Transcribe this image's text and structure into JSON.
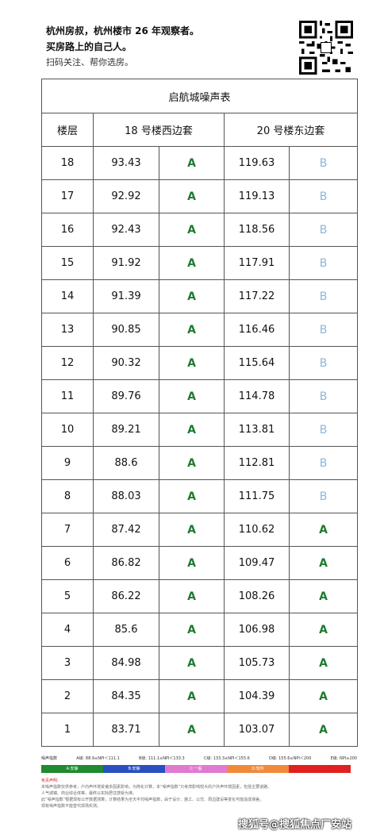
{
  "header": {
    "line1": "杭州房叔，杭州楼市 26 年观察者。",
    "line2": "买房路上的自己人。",
    "line3": "扫码关注、帮你选房。"
  },
  "table": {
    "title": "启航城噪声表",
    "col_floor": "楼层",
    "col_b18": "18 号楼西边套",
    "col_b20": "20 号楼东边套",
    "rows": [
      {
        "floor": "18",
        "v18": "93.43",
        "g18": "A",
        "v20": "119.63",
        "g20": "B"
      },
      {
        "floor": "17",
        "v18": "92.92",
        "g18": "A",
        "v20": "119.13",
        "g20": "B"
      },
      {
        "floor": "16",
        "v18": "92.43",
        "g18": "A",
        "v20": "118.56",
        "g20": "B"
      },
      {
        "floor": "15",
        "v18": "91.92",
        "g18": "A",
        "v20": "117.91",
        "g20": "B"
      },
      {
        "floor": "14",
        "v18": "91.39",
        "g18": "A",
        "v20": "117.22",
        "g20": "B"
      },
      {
        "floor": "13",
        "v18": "90.85",
        "g18": "A",
        "v20": "116.46",
        "g20": "B"
      },
      {
        "floor": "12",
        "v18": "90.32",
        "g18": "A",
        "v20": "115.64",
        "g20": "B"
      },
      {
        "floor": "11",
        "v18": "89.76",
        "g18": "A",
        "v20": "114.78",
        "g20": "B"
      },
      {
        "floor": "10",
        "v18": "89.21",
        "g18": "A",
        "v20": "113.81",
        "g20": "B"
      },
      {
        "floor": "9",
        "v18": "88.6",
        "g18": "A",
        "v20": "112.81",
        "g20": "B"
      },
      {
        "floor": "8",
        "v18": "88.03",
        "g18": "A",
        "v20": "111.75",
        "g20": "B"
      },
      {
        "floor": "7",
        "v18": "87.42",
        "g18": "A",
        "v20": "110.62",
        "g20": "A"
      },
      {
        "floor": "6",
        "v18": "86.82",
        "g18": "A",
        "v20": "109.47",
        "g20": "A"
      },
      {
        "floor": "5",
        "v18": "86.22",
        "g18": "A",
        "v20": "108.26",
        "g20": "A"
      },
      {
        "floor": "4",
        "v18": "85.6",
        "g18": "A",
        "v20": "106.98",
        "g20": "A"
      },
      {
        "floor": "3",
        "v18": "84.98",
        "g18": "A",
        "v20": "105.73",
        "g20": "A"
      },
      {
        "floor": "2",
        "v18": "84.35",
        "g18": "A",
        "v20": "104.39",
        "g20": "A"
      },
      {
        "floor": "1",
        "v18": "83.71",
        "g18": "A",
        "v20": "103.07",
        "g20": "A"
      }
    ]
  },
  "legend": {
    "label": "噪声指数",
    "items": [
      "A级: 88.9≤NPI＜111.1",
      "B级: 111.1≤NPI＜133.3",
      "C级: 133.3≤NPI＜155.6",
      "D级: 155.6≤NPI＜200",
      "E级: NPI≥200"
    ],
    "bar": [
      {
        "label": "A:安静",
        "color": "#1f8a2e"
      },
      {
        "label": "B:安静",
        "color": "#2a4fc0"
      },
      {
        "label": "C:一般",
        "color": "#e07ad0"
      },
      {
        "label": "D:较吵",
        "color": "#f08a3a"
      },
      {
        "label": "",
        "color": "#e02020"
      }
    ]
  },
  "notes": {
    "heading": "免责声明:",
    "lines": [
      "本噪声指数仅供参考，户内声环境受诸多因素影响，为简化计算，本“噪声指数”只考虑影响较大的户外声环境因素，包括主要道路、",
      "人气城镇、商业综合体等，最终以实际居住感受为准。",
      "此“噪声指数”根据现有公开数据测算，计算结果为全天平均噪声指数，由于设计、施工、公交、周边建设等变化可能造成误差。",
      "现有噪声指数不能替代现场实测。"
    ]
  },
  "watermark": "搜狐号@搜狐焦点厂安站"
}
